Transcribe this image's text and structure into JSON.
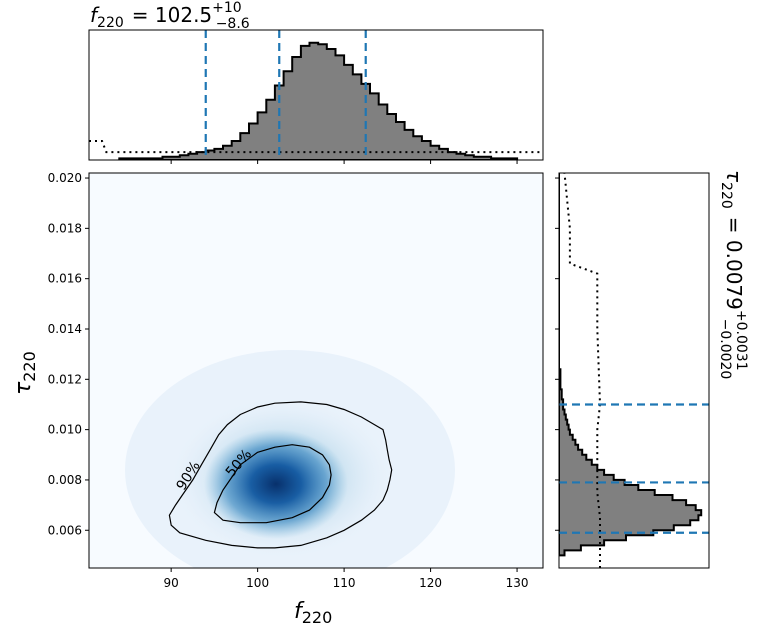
{
  "chart_data": [
    {
      "type": "heatmap",
      "panel": "joint",
      "xlabel": "f",
      "xlabel_sub": "220",
      "ylabel": "τ",
      "ylabel_sub": "220",
      "xlim": [
        80.5,
        133
      ],
      "ylim": [
        0.0045,
        0.0202
      ],
      "xticks": [
        "90",
        "100",
        "110",
        "120",
        "130"
      ],
      "xtick_values": [
        90,
        100,
        110,
        120,
        130
      ],
      "yticks": [
        "0.006",
        "0.008",
        "0.010",
        "0.012",
        "0.014",
        "0.016",
        "0.018",
        "0.020"
      ],
      "ytick_values": [
        0.006,
        0.008,
        0.01,
        0.012,
        0.014,
        0.016,
        0.018,
        0.02
      ],
      "colormap": "Blues",
      "density_peak": {
        "x": 101.5,
        "y": 0.0077
      },
      "contours": [
        {
          "label": "90%",
          "points": [
            [
              98,
              0.0106
            ],
            [
              100,
              0.0109
            ],
            [
              102,
              0.01105
            ],
            [
              105,
              0.0111
            ],
            [
              108,
              0.011
            ],
            [
              110,
              0.0108
            ],
            [
              112,
              0.0105
            ],
            [
              113.5,
              0.0102
            ],
            [
              114.5,
              0.01
            ],
            [
              114.8,
              0.0096
            ],
            [
              115,
              0.0092
            ],
            [
              115.2,
              0.0088
            ],
            [
              115.5,
              0.0084
            ],
            [
              115.3,
              0.008
            ],
            [
              115,
              0.0076
            ],
            [
              114.5,
              0.0072
            ],
            [
              113.5,
              0.0068
            ],
            [
              112,
              0.0064
            ],
            [
              110,
              0.006
            ],
            [
              108,
              0.0057
            ],
            [
              105,
              0.0054
            ],
            [
              102,
              0.0053
            ],
            [
              100,
              0.0053
            ],
            [
              97,
              0.0054
            ],
            [
              94,
              0.0056
            ],
            [
              91,
              0.0059
            ],
            [
              90,
              0.0062
            ],
            [
              89.8,
              0.0066
            ],
            [
              90.5,
              0.007
            ],
            [
              91.3,
              0.0074
            ],
            [
              92.5,
              0.008
            ],
            [
              93.5,
              0.0086
            ],
            [
              94.5,
              0.0092
            ],
            [
              95.5,
              0.0098
            ],
            [
              96.5,
              0.0102
            ],
            [
              98,
              0.0106
            ]
          ]
        },
        {
          "label": "50%",
          "points": [
            [
              100,
              0.0091
            ],
            [
              102,
              0.0093
            ],
            [
              104,
              0.0094
            ],
            [
              106,
              0.0093
            ],
            [
              107.5,
              0.009
            ],
            [
              108.3,
              0.0086
            ],
            [
              108.5,
              0.0082
            ],
            [
              108.3,
              0.0078
            ],
            [
              107.5,
              0.0073
            ],
            [
              106,
              0.0068
            ],
            [
              104,
              0.0065
            ],
            [
              101,
              0.0063
            ],
            [
              98,
              0.0063
            ],
            [
              96,
              0.0064
            ],
            [
              95,
              0.0067
            ],
            [
              95.3,
              0.0071
            ],
            [
              96,
              0.0076
            ],
            [
              97,
              0.0081
            ],
            [
              98,
              0.0086
            ],
            [
              100,
              0.0091
            ]
          ]
        }
      ]
    },
    {
      "type": "histogram",
      "panel": "top-marginal",
      "title_prefix": "f",
      "title_sub": "220",
      "title_value": "= 102.5",
      "title_sup": "+10",
      "title_low": "−8.6",
      "color": "#808080",
      "quantiles": [
        94.0,
        102.5,
        112.5
      ],
      "quantile_color": "#1f77b4",
      "bin_start": 84,
      "bin_width": 1,
      "counts": [
        1,
        1,
        1,
        1,
        1,
        2,
        2,
        3,
        4,
        5,
        6,
        7,
        9,
        12,
        17,
        23,
        30,
        38,
        47,
        56,
        65,
        72,
        74,
        73,
        70,
        66,
        60,
        54,
        48,
        42,
        35,
        29,
        24,
        19,
        15,
        12,
        9,
        7,
        5,
        4,
        3,
        2,
        2,
        1,
        1,
        1
      ],
      "prior": [
        [
          80.5,
          12
        ],
        [
          82,
          12
        ],
        [
          82.5,
          5
        ],
        [
          133,
          5
        ]
      ]
    },
    {
      "type": "histogram",
      "panel": "right-marginal",
      "title_prefix": "τ",
      "title_sub": "220",
      "title_value": "= 0.0079",
      "title_sup": "+0.0031",
      "title_low": "−0.0020",
      "color": "#808080",
      "quantiles": [
        0.0059,
        0.0079,
        0.011
      ],
      "quantile_color": "#1f77b4",
      "bin_start": 0.005,
      "bin_width": 0.0002,
      "counts": [
        4,
        16,
        33,
        49,
        69,
        84,
        96,
        102,
        104,
        100,
        93,
        83,
        70,
        58,
        48,
        40,
        33,
        28,
        24,
        20,
        17,
        14,
        12,
        10,
        8,
        7,
        6,
        5,
        4,
        3,
        3,
        2,
        2,
        1,
        1,
        1,
        1,
        0,
        0,
        0,
        0,
        0,
        0,
        0,
        0,
        0,
        0,
        0,
        0,
        0,
        0,
        0,
        0,
        0,
        0,
        0,
        0,
        0,
        0,
        0,
        0,
        0,
        0,
        0,
        0,
        0,
        0,
        0,
        0,
        0,
        0,
        0,
        0,
        0,
        0,
        0
      ],
      "prior": [
        [
          0.0045,
          30
        ],
        [
          0.0065,
          30
        ],
        [
          0.0075,
          28
        ],
        [
          0.01,
          28
        ],
        [
          0.011,
          30
        ],
        [
          0.014,
          28
        ],
        [
          0.0162,
          28
        ],
        [
          0.0166,
          8
        ],
        [
          0.018,
          8
        ],
        [
          0.0202,
          4
        ]
      ]
    }
  ]
}
